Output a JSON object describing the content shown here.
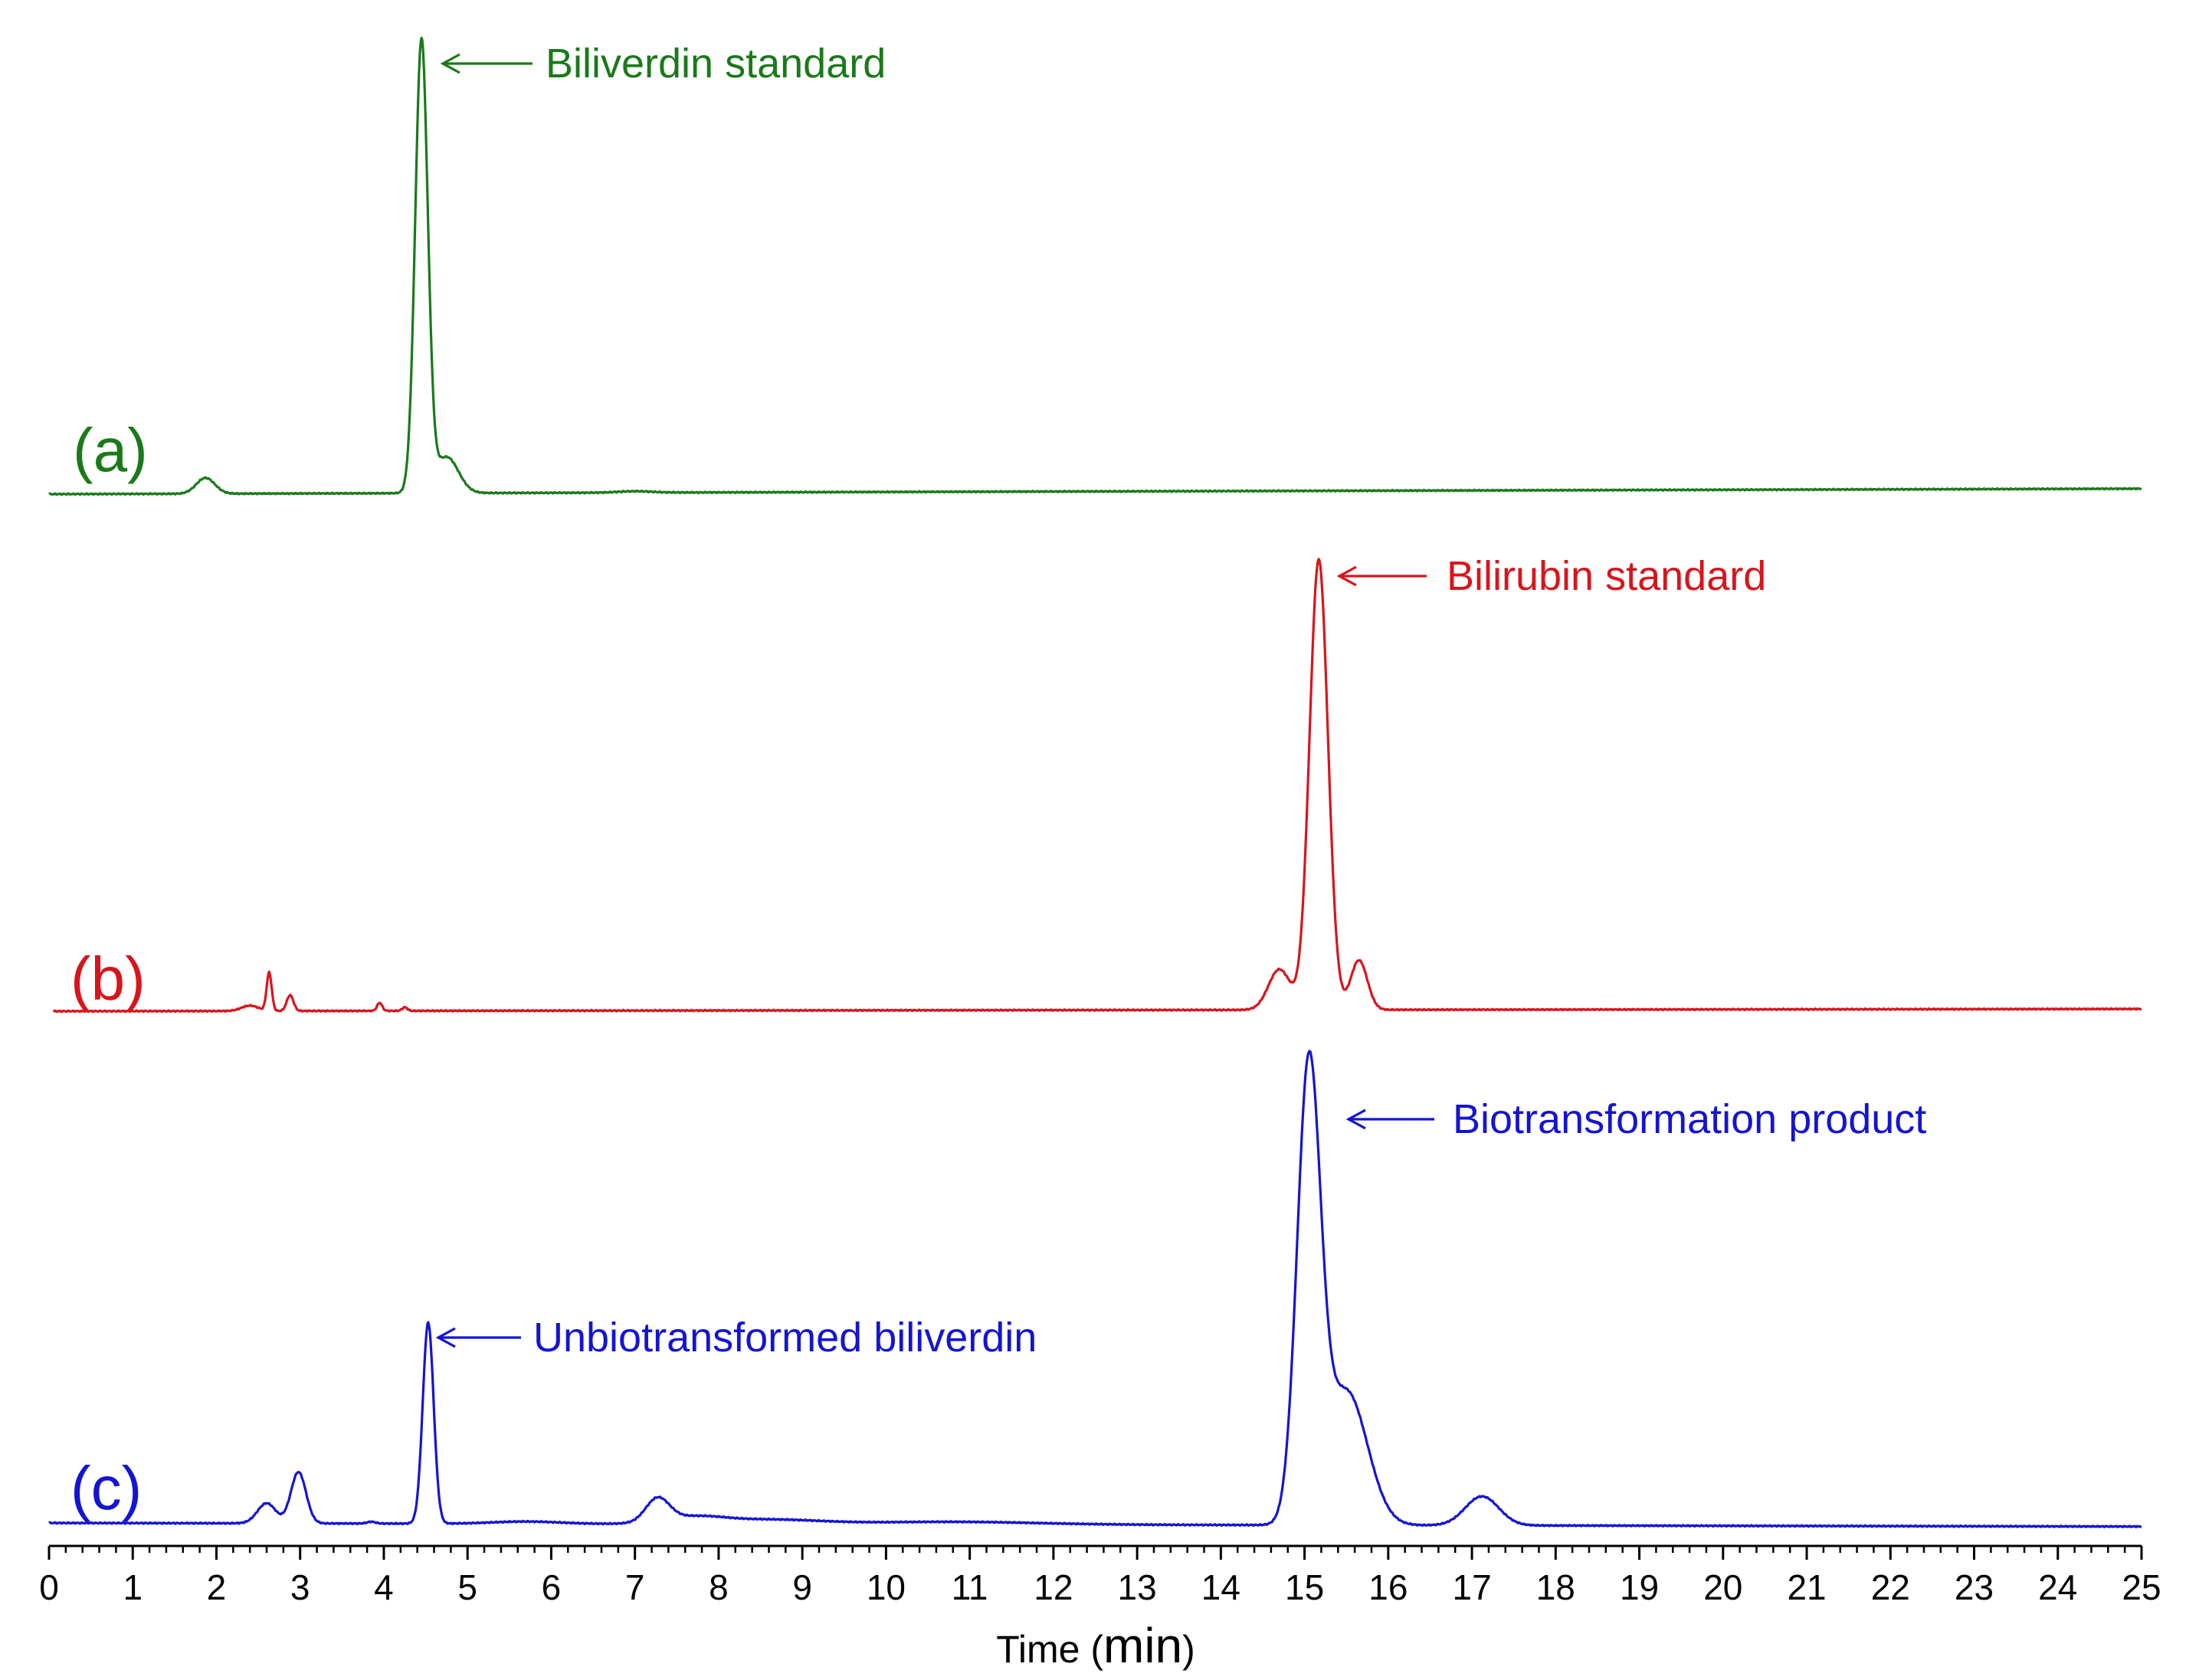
{
  "chart_data": {
    "type": "line",
    "xlabel_prefix": "Time (",
    "xlabel_unit": "min",
    "xlabel_suffix": ")",
    "xlim": [
      0,
      25
    ],
    "major_ticks": [
      0,
      1,
      2,
      3,
      4,
      5,
      6,
      7,
      8,
      9,
      10,
      11,
      12,
      13,
      14,
      15,
      16,
      17,
      18,
      19,
      20,
      21,
      22,
      23,
      24,
      25
    ],
    "minor_tick_step": 0.2,
    "grid": false,
    "series": [
      {
        "id": "a",
        "label": "(a)",
        "color": "#1a7a1a",
        "baseline_start": 0.0,
        "baseline_end": 0.012,
        "peaks": [
          {
            "rt": 1.87,
            "height": 0.035,
            "sigma": 0.11
          },
          {
            "rt": 4.45,
            "height": 1.0,
            "sigma": 0.075
          },
          {
            "rt": 4.75,
            "height": 0.08,
            "sigma": 0.14
          },
          {
            "rt": 7.0,
            "height": 0.003,
            "sigma": 0.2
          }
        ],
        "annotation": {
          "text": "Biliverdin standard",
          "target_rt": 4.45
        }
      },
      {
        "id": "b",
        "label": "(b)",
        "color": "#d9141c",
        "baseline_start": 0.0,
        "baseline_end": 0.005,
        "peaks": [
          {
            "rt": 2.4,
            "height": 0.012,
            "sigma": 0.1
          },
          {
            "rt": 2.63,
            "height": 0.085,
            "sigma": 0.03
          },
          {
            "rt": 2.88,
            "height": 0.035,
            "sigma": 0.04
          },
          {
            "rt": 3.95,
            "height": 0.018,
            "sigma": 0.03
          },
          {
            "rt": 4.25,
            "height": 0.008,
            "sigma": 0.03
          },
          {
            "rt": 14.7,
            "height": 0.09,
            "sigma": 0.13
          },
          {
            "rt": 15.17,
            "height": 1.0,
            "sigma": 0.11
          },
          {
            "rt": 15.65,
            "height": 0.11,
            "sigma": 0.1
          }
        ],
        "annotation": {
          "text": "Bilirubin standard",
          "target_rt": 15.17
        }
      },
      {
        "id": "c",
        "label": "(c)",
        "color": "#1414d4",
        "baseline_start": 0.0,
        "baseline_end": -0.008,
        "peaks": [
          {
            "rt": 2.6,
            "height": 0.045,
            "sigma": 0.11
          },
          {
            "rt": 2.98,
            "height": 0.115,
            "sigma": 0.09
          },
          {
            "rt": 3.85,
            "height": 0.004,
            "sigma": 0.05
          },
          {
            "rt": 4.53,
            "height": 0.45,
            "sigma": 0.065
          },
          {
            "rt": 5.7,
            "height": 0.005,
            "sigma": 0.4
          },
          {
            "rt": 7.27,
            "height": 0.052,
            "sigma": 0.14
          },
          {
            "rt": 7.7,
            "height": 0.015,
            "sigma": 0.35
          },
          {
            "rt": 8.6,
            "height": 0.01,
            "sigma": 0.6
          },
          {
            "rt": 10.8,
            "height": 0.006,
            "sigma": 1.0
          },
          {
            "rt": 15.05,
            "height": 1.0,
            "sigma": 0.14
          },
          {
            "rt": 15.5,
            "height": 0.3,
            "sigma": 0.25
          },
          {
            "rt": 17.12,
            "height": 0.065,
            "sigma": 0.2
          }
        ],
        "annotations": [
          {
            "text": "Biotransformation product",
            "target_rt": 15.12
          },
          {
            "text": "Unbiotransformed biliverdin",
            "target_rt": 4.53
          }
        ]
      }
    ]
  }
}
